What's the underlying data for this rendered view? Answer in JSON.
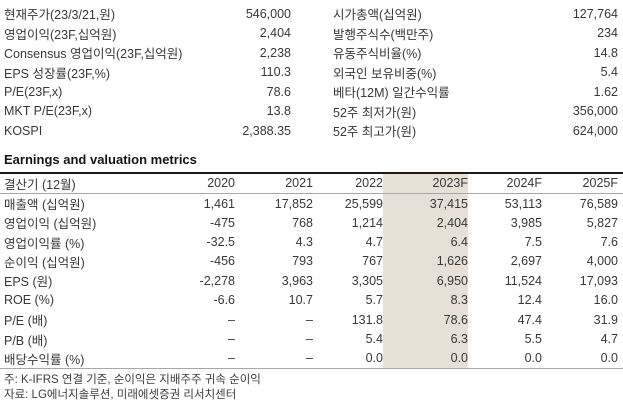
{
  "summary": {
    "left": [
      {
        "label": "현재주가(23/3/21,원)",
        "value": "546,000"
      },
      {
        "label": "영업이익(23F,십억원)",
        "value": "2,404"
      },
      {
        "label": "Consensus 영업이익(23F,십억원)",
        "value": "2,238"
      },
      {
        "label": "EPS 성장률(23F,%)",
        "value": "110.3"
      },
      {
        "label": "P/E(23F,x)",
        "value": "78.6"
      },
      {
        "label": "MKT P/E(23F,x)",
        "value": "13.8"
      },
      {
        "label": "KOSPI",
        "value": "2,388.35"
      }
    ],
    "right": [
      {
        "label": "시가총액(십억원)",
        "value": "127,764"
      },
      {
        "label": "발행주식수(백만주)",
        "value": "234"
      },
      {
        "label": "유동주식비율(%)",
        "value": "14.8"
      },
      {
        "label": "외국인 보유비중(%)",
        "value": "5.4"
      },
      {
        "label": "베타(12M) 일간수익률",
        "value": "1.62"
      },
      {
        "label": "52주 최저가(원)",
        "value": "356,000"
      },
      {
        "label": "52주 최고가(원)",
        "value": "624,000"
      }
    ]
  },
  "table": {
    "title": "Earnings and valuation metrics",
    "columns": [
      "결산기 (12월)",
      "2020",
      "2021",
      "2022",
      "2023F",
      "2024F",
      "2025F"
    ],
    "highlight_column": "2023F",
    "highlight_color": "#e6e0d7",
    "rows": [
      {
        "label": "매출액 (십억원)",
        "values": [
          "1,461",
          "17,852",
          "25,599",
          "37,415",
          "53,113",
          "76,589"
        ]
      },
      {
        "label": "영업이익 (십억원)",
        "values": [
          "-475",
          "768",
          "1,214",
          "2,404",
          "3,985",
          "5,827"
        ]
      },
      {
        "label": "영업이익률 (%)",
        "values": [
          "-32.5",
          "4.3",
          "4.7",
          "6.4",
          "7.5",
          "7.6"
        ]
      },
      {
        "label": "순이익 (십억원)",
        "values": [
          "-456",
          "793",
          "767",
          "1,626",
          "2,697",
          "4,000"
        ]
      },
      {
        "label": "EPS (원)",
        "values": [
          "-2,278",
          "3,963",
          "3,305",
          "6,950",
          "11,524",
          "17,093"
        ]
      },
      {
        "label": "ROE (%)",
        "values": [
          "-6.6",
          "10.7",
          "5.7",
          "8.3",
          "12.4",
          "16.0"
        ]
      },
      {
        "label": "P/E (배)",
        "values": [
          "–",
          "–",
          "131.8",
          "78.6",
          "47.4",
          "31.9"
        ]
      },
      {
        "label": "P/B (배)",
        "values": [
          "–",
          "–",
          "5.4",
          "6.3",
          "5.5",
          "4.7"
        ]
      },
      {
        "label": "배당수익률 (%)",
        "values": [
          "–",
          "–",
          "0.0",
          "0.0",
          "0.0",
          "0.0"
        ]
      }
    ]
  },
  "notes": [
    "주: K-IFRS 연결 기준, 순이익은 지배주주 귀속 순이익",
    "자료: LG에너지솔루션, 미래에셋증권 리서치센터"
  ]
}
